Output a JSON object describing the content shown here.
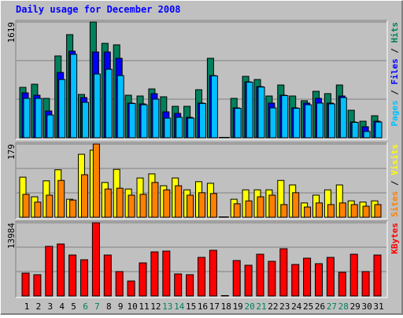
{
  "chart_data": {
    "type": "bar",
    "title": "Daily usage for December 2008",
    "categories": [
      "1",
      "2",
      "3",
      "4",
      "5",
      "6",
      "7",
      "8",
      "9",
      "10",
      "11",
      "12",
      "13",
      "14",
      "15",
      "16",
      "17",
      "18",
      "19",
      "20",
      "21",
      "22",
      "23",
      "24",
      "25",
      "26",
      "27",
      "28",
      "29",
      "30",
      "31"
    ],
    "weekend": [
      false,
      false,
      false,
      false,
      false,
      true,
      true,
      false,
      false,
      false,
      false,
      false,
      true,
      true,
      false,
      false,
      false,
      false,
      false,
      true,
      true,
      false,
      false,
      false,
      false,
      false,
      true,
      true,
      false,
      false,
      false
    ],
    "weekend_color": "#00805C",
    "weekday_color": "#000000",
    "legend_separator": " / ",
    "panels": [
      {
        "ylim": [
          0,
          1619
        ],
        "yticks": [
          1619
        ],
        "series": [
          {
            "name": "Hits",
            "color": "#00805C",
            "values": [
              705,
              749,
              551,
              1145,
              1443,
              606,
              1619,
              1321,
              1300,
              595,
              584,
              683,
              573,
              440,
              440,
              672,
              1112,
              0,
              551,
              859,
              815,
              584,
              738,
              584,
              518,
              650,
              617,
              738,
              385,
              231,
              308
            ]
          },
          {
            "name": "Files",
            "color": "#0000FF",
            "values": [
              628,
              595,
              374,
              914,
              1211,
              562,
              1200,
              1200,
              1112,
              485,
              474,
              617,
              363,
              341,
              286,
              485,
              870,
              0,
              418,
              782,
              716,
              485,
              595,
              418,
              485,
              551,
              485,
              584,
              220,
              154,
              231
            ]
          },
          {
            "name": "Pages",
            "color": "#00C0FF",
            "values": [
              551,
              551,
              319,
              815,
              1167,
              496,
              892,
              958,
              870,
              480,
              462,
              540,
              275,
              286,
              275,
              480,
              866,
              0,
              412,
              778,
              710,
              418,
              590,
              412,
              462,
              485,
              474,
              562,
              215,
              88,
              220
            ]
          }
        ]
      },
      {
        "ylim": [
          0,
          179
        ],
        "yticks": [
          179
        ],
        "series": [
          {
            "name": "Visits",
            "color": "#FFFF00",
            "values": [
              98,
              50,
              89,
              116,
              44,
              154,
              164,
              85,
              117,
              69,
              96,
              106,
              77,
              96,
              67,
              87,
              83,
              0,
              44,
              67,
              67,
              67,
              90,
              79,
              35,
              54,
              67,
              79,
              40,
              37,
              40
            ]
          },
          {
            "name": "Sites",
            "color": "#FF8000",
            "values": [
              56,
              37,
              54,
              90,
              42,
              104,
              179,
              69,
              71,
              54,
              56,
              85,
              67,
              77,
              54,
              60,
              58,
              0,
              33,
              40,
              50,
              54,
              31,
              60,
              25,
              35,
              31,
              35,
              31,
              27,
              31
            ]
          }
        ]
      },
      {
        "ylim": [
          0,
          13984
        ],
        "yticks": [
          13984
        ],
        "series": [
          {
            "name": "KBytes",
            "color": "#FF0000",
            "values": [
              4362,
              4061,
              9475,
              9926,
              7821,
              6918,
              13984,
              7821,
              4662,
              2857,
              6317,
              8422,
              8573,
              4211,
              4061,
              7370,
              8723,
              0,
              6768,
              5866,
              7971,
              6617,
              9024,
              6016,
              7219,
              6166,
              7370,
              4512,
              7971,
              4662,
              7821
            ]
          }
        ]
      }
    ]
  }
}
